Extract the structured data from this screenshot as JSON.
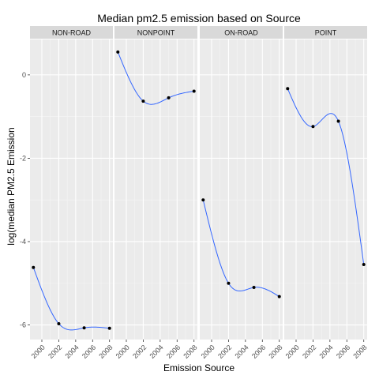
{
  "chart_data": {
    "type": "line",
    "title": "Median pm2.5 emission based on Source",
    "xlabel": "Emission Source",
    "ylabel": "log(median PM2.5 Emission",
    "x_ticks": [
      2000,
      2002,
      2004,
      2006,
      2008
    ],
    "y_ticks": [
      0,
      -2,
      -4,
      -6
    ],
    "xlim": [
      1998.6,
      2008.4
    ],
    "ylim": [
      -6.35,
      0.85
    ],
    "grid": true,
    "smoothed_line": true,
    "colors": {
      "line": "#3366ff",
      "point": "#000000",
      "panel": "#ebebeb",
      "strip": "#d9d9d9",
      "grid": "#ffffff"
    },
    "panels": [
      {
        "name": "NON-ROAD",
        "x": [
          1999,
          2002,
          2005,
          2008
        ],
        "y": [
          -4.62,
          -5.97,
          -6.07,
          -6.08
        ]
      },
      {
        "name": "NONPOINT",
        "x": [
          1999,
          2002,
          2005,
          2008
        ],
        "y": [
          0.55,
          -0.63,
          -0.55,
          -0.39
        ]
      },
      {
        "name": "ON-ROAD",
        "x": [
          1999,
          2002,
          2005,
          2008
        ],
        "y": [
          -3.0,
          -5.0,
          -5.1,
          -5.32
        ]
      },
      {
        "name": "POINT",
        "x": [
          1999,
          2002,
          2005,
          2008
        ],
        "y": [
          -0.33,
          -1.24,
          -1.11,
          -4.55
        ]
      }
    ]
  }
}
